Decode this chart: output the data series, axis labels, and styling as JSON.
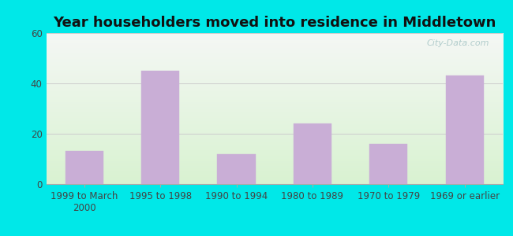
{
  "title": "Year householders moved into residence in Middletown",
  "categories": [
    "1999 to March\n2000",
    "1995 to 1998",
    "1990 to 1994",
    "1980 to 1989",
    "1970 to 1979",
    "1969 or earlier"
  ],
  "values": [
    13,
    45,
    12,
    24,
    16,
    43
  ],
  "bar_color": "#c9aed6",
  "bar_edgecolor": "#c9aed6",
  "ylim": [
    0,
    60
  ],
  "yticks": [
    0,
    20,
    40,
    60
  ],
  "title_fontsize": 13,
  "tick_fontsize": 8.5,
  "background_outer": "#00e8e8",
  "plot_bg_top": "#f5f5f5",
  "plot_bg_bottom": "#dff0d8",
  "watermark_text": "City-Data.com",
  "watermark_color": "#aac8c8",
  "grid_color": "#cccccc"
}
